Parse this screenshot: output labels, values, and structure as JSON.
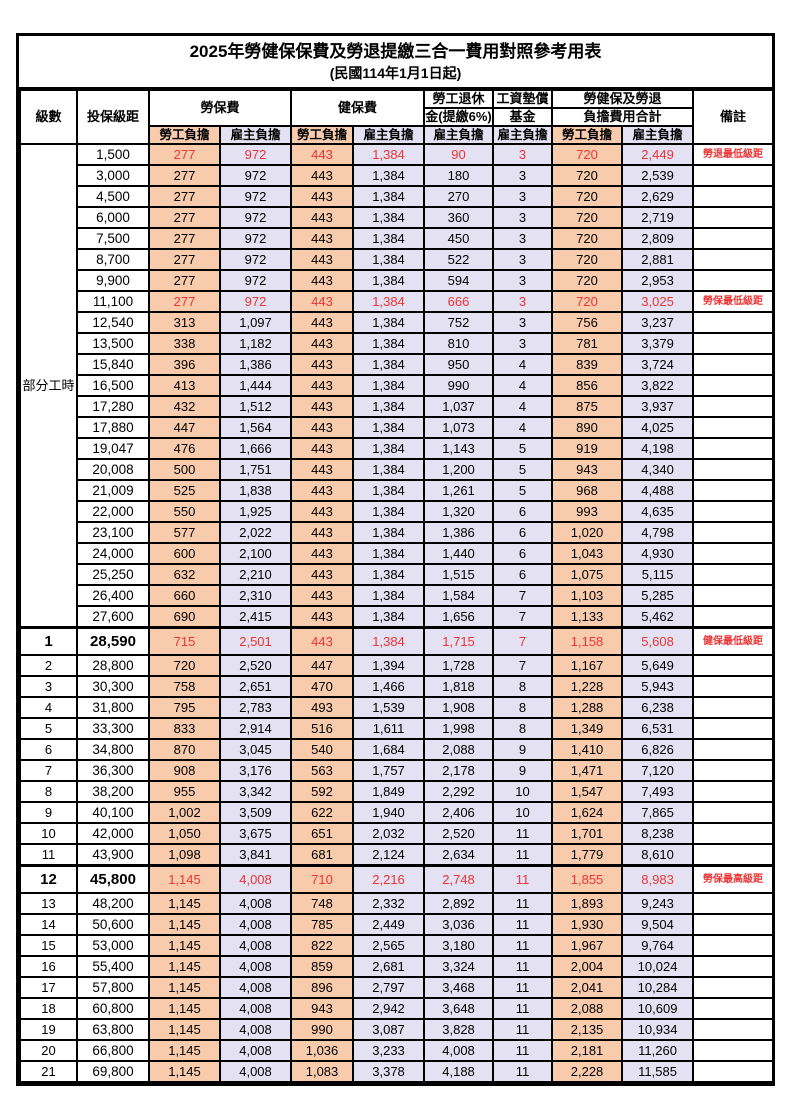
{
  "title": "2025年勞健保保費及勞退提繳三合一費用對照參考用表",
  "subtitle": "(民國114年1月1日起)",
  "colors": {
    "worker_bg": "#F8CBAD",
    "employer_bg": "#E3E1F2",
    "highlight_text": "#EE3333"
  },
  "headers": {
    "level": "級數",
    "bracket": "投保級距",
    "labor_insurance": "勞保費",
    "health_insurance": "健保費",
    "pension_line1": "勞工退休",
    "pension_line2": "金(提繳6%)",
    "wage_fund_line1": "工資墊償",
    "wage_fund_line2": "基金",
    "total_line1": "勞健保及勞退",
    "total_line2": "負擔費用合計",
    "remark": "備註",
    "worker_label": "勞工負擔",
    "employer_label": "雇主負擔"
  },
  "table": {
    "part_time_label": "部分工時",
    "part_time_rowspan": 23,
    "rows": [
      {
        "level": "",
        "bracket": "1,500",
        "cells": [
          "277",
          "972",
          "443",
          "1,384",
          "90",
          "3",
          "720",
          "2,449"
        ],
        "remark": "勞退最低級距",
        "highlight": true,
        "bold": false
      },
      {
        "level": "",
        "bracket": "3,000",
        "cells": [
          "277",
          "972",
          "443",
          "1,384",
          "180",
          "3",
          "720",
          "2,539"
        ],
        "remark": "",
        "highlight": false,
        "bold": false
      },
      {
        "level": "",
        "bracket": "4,500",
        "cells": [
          "277",
          "972",
          "443",
          "1,384",
          "270",
          "3",
          "720",
          "2,629"
        ],
        "remark": "",
        "highlight": false,
        "bold": false
      },
      {
        "level": "",
        "bracket": "6,000",
        "cells": [
          "277",
          "972",
          "443",
          "1,384",
          "360",
          "3",
          "720",
          "2,719"
        ],
        "remark": "",
        "highlight": false,
        "bold": false
      },
      {
        "level": "",
        "bracket": "7,500",
        "cells": [
          "277",
          "972",
          "443",
          "1,384",
          "450",
          "3",
          "720",
          "2,809"
        ],
        "remark": "",
        "highlight": false,
        "bold": false
      },
      {
        "level": "",
        "bracket": "8,700",
        "cells": [
          "277",
          "972",
          "443",
          "1,384",
          "522",
          "3",
          "720",
          "2,881"
        ],
        "remark": "",
        "highlight": false,
        "bold": false
      },
      {
        "level": "",
        "bracket": "9,900",
        "cells": [
          "277",
          "972",
          "443",
          "1,384",
          "594",
          "3",
          "720",
          "2,953"
        ],
        "remark": "",
        "highlight": false,
        "bold": false
      },
      {
        "level": "",
        "bracket": "11,100",
        "cells": [
          "277",
          "972",
          "443",
          "1,384",
          "666",
          "3",
          "720",
          "3,025"
        ],
        "remark": "勞保最低級距",
        "highlight": true,
        "bold": false
      },
      {
        "level": "",
        "bracket": "12,540",
        "cells": [
          "313",
          "1,097",
          "443",
          "1,384",
          "752",
          "3",
          "756",
          "3,237"
        ],
        "remark": "",
        "highlight": false,
        "bold": false
      },
      {
        "level": "",
        "bracket": "13,500",
        "cells": [
          "338",
          "1,182",
          "443",
          "1,384",
          "810",
          "3",
          "781",
          "3,379"
        ],
        "remark": "",
        "highlight": false,
        "bold": false
      },
      {
        "level": "",
        "bracket": "15,840",
        "cells": [
          "396",
          "1,386",
          "443",
          "1,384",
          "950",
          "4",
          "839",
          "3,724"
        ],
        "remark": "",
        "highlight": false,
        "bold": false
      },
      {
        "level": "",
        "bracket": "16,500",
        "cells": [
          "413",
          "1,444",
          "443",
          "1,384",
          "990",
          "4",
          "856",
          "3,822"
        ],
        "remark": "",
        "highlight": false,
        "bold": false
      },
      {
        "level": "",
        "bracket": "17,280",
        "cells": [
          "432",
          "1,512",
          "443",
          "1,384",
          "1,037",
          "4",
          "875",
          "3,937"
        ],
        "remark": "",
        "highlight": false,
        "bold": false
      },
      {
        "level": "",
        "bracket": "17,880",
        "cells": [
          "447",
          "1,564",
          "443",
          "1,384",
          "1,073",
          "4",
          "890",
          "4,025"
        ],
        "remark": "",
        "highlight": false,
        "bold": false
      },
      {
        "level": "",
        "bracket": "19,047",
        "cells": [
          "476",
          "1,666",
          "443",
          "1,384",
          "1,143",
          "5",
          "919",
          "4,198"
        ],
        "remark": "",
        "highlight": false,
        "bold": false
      },
      {
        "level": "",
        "bracket": "20,008",
        "cells": [
          "500",
          "1,751",
          "443",
          "1,384",
          "1,200",
          "5",
          "943",
          "4,340"
        ],
        "remark": "",
        "highlight": false,
        "bold": false
      },
      {
        "level": "",
        "bracket": "21,009",
        "cells": [
          "525",
          "1,838",
          "443",
          "1,384",
          "1,261",
          "5",
          "968",
          "4,488"
        ],
        "remark": "",
        "highlight": false,
        "bold": false
      },
      {
        "level": "",
        "bracket": "22,000",
        "cells": [
          "550",
          "1,925",
          "443",
          "1,384",
          "1,320",
          "6",
          "993",
          "4,635"
        ],
        "remark": "",
        "highlight": false,
        "bold": false
      },
      {
        "level": "",
        "bracket": "23,100",
        "cells": [
          "577",
          "2,022",
          "443",
          "1,384",
          "1,386",
          "6",
          "1,020",
          "4,798"
        ],
        "remark": "",
        "highlight": false,
        "bold": false
      },
      {
        "level": "",
        "bracket": "24,000",
        "cells": [
          "600",
          "2,100",
          "443",
          "1,384",
          "1,440",
          "6",
          "1,043",
          "4,930"
        ],
        "remark": "",
        "highlight": false,
        "bold": false
      },
      {
        "level": "",
        "bracket": "25,250",
        "cells": [
          "632",
          "2,210",
          "443",
          "1,384",
          "1,515",
          "6",
          "1,075",
          "5,115"
        ],
        "remark": "",
        "highlight": false,
        "bold": false
      },
      {
        "level": "",
        "bracket": "26,400",
        "cells": [
          "660",
          "2,310",
          "443",
          "1,384",
          "1,584",
          "7",
          "1,103",
          "5,285"
        ],
        "remark": "",
        "highlight": false,
        "bold": false
      },
      {
        "level": "",
        "bracket": "27,600",
        "cells": [
          "690",
          "2,415",
          "443",
          "1,384",
          "1,656",
          "7",
          "1,133",
          "5,462"
        ],
        "remark": "",
        "highlight": false,
        "bold": false
      },
      {
        "level": "1",
        "bracket": "28,590",
        "cells": [
          "715",
          "2,501",
          "443",
          "1,384",
          "1,715",
          "7",
          "1,158",
          "5,608"
        ],
        "remark": "健保最低級距",
        "highlight": true,
        "bold": true
      },
      {
        "level": "2",
        "bracket": "28,800",
        "cells": [
          "720",
          "2,520",
          "447",
          "1,394",
          "1,728",
          "7",
          "1,167",
          "5,649"
        ],
        "remark": "",
        "highlight": false,
        "bold": false
      },
      {
        "level": "3",
        "bracket": "30,300",
        "cells": [
          "758",
          "2,651",
          "470",
          "1,466",
          "1,818",
          "8",
          "1,228",
          "5,943"
        ],
        "remark": "",
        "highlight": false,
        "bold": false
      },
      {
        "level": "4",
        "bracket": "31,800",
        "cells": [
          "795",
          "2,783",
          "493",
          "1,539",
          "1,908",
          "8",
          "1,288",
          "6,238"
        ],
        "remark": "",
        "highlight": false,
        "bold": false
      },
      {
        "level": "5",
        "bracket": "33,300",
        "cells": [
          "833",
          "2,914",
          "516",
          "1,611",
          "1,998",
          "8",
          "1,349",
          "6,531"
        ],
        "remark": "",
        "highlight": false,
        "bold": false
      },
      {
        "level": "6",
        "bracket": "34,800",
        "cells": [
          "870",
          "3,045",
          "540",
          "1,684",
          "2,088",
          "9",
          "1,410",
          "6,826"
        ],
        "remark": "",
        "highlight": false,
        "bold": false
      },
      {
        "level": "7",
        "bracket": "36,300",
        "cells": [
          "908",
          "3,176",
          "563",
          "1,757",
          "2,178",
          "9",
          "1,471",
          "7,120"
        ],
        "remark": "",
        "highlight": false,
        "bold": false
      },
      {
        "level": "8",
        "bracket": "38,200",
        "cells": [
          "955",
          "3,342",
          "592",
          "1,849",
          "2,292",
          "10",
          "1,547",
          "7,493"
        ],
        "remark": "",
        "highlight": false,
        "bold": false
      },
      {
        "level": "9",
        "bracket": "40,100",
        "cells": [
          "1,002",
          "3,509",
          "622",
          "1,940",
          "2,406",
          "10",
          "1,624",
          "7,865"
        ],
        "remark": "",
        "highlight": false,
        "bold": false
      },
      {
        "level": "10",
        "bracket": "42,000",
        "cells": [
          "1,050",
          "3,675",
          "651",
          "2,032",
          "2,520",
          "11",
          "1,701",
          "8,238"
        ],
        "remark": "",
        "highlight": false,
        "bold": false
      },
      {
        "level": "11",
        "bracket": "43,900",
        "cells": [
          "1,098",
          "3,841",
          "681",
          "2,124",
          "2,634",
          "11",
          "1,779",
          "8,610"
        ],
        "remark": "",
        "highlight": false,
        "bold": false
      },
      {
        "level": "12",
        "bracket": "45,800",
        "cells": [
          "1,145",
          "4,008",
          "710",
          "2,216",
          "2,748",
          "11",
          "1,855",
          "8,983"
        ],
        "remark": "勞保最高級距",
        "highlight": true,
        "bold": true
      },
      {
        "level": "13",
        "bracket": "48,200",
        "cells": [
          "1,145",
          "4,008",
          "748",
          "2,332",
          "2,892",
          "11",
          "1,893",
          "9,243"
        ],
        "remark": "",
        "highlight": false,
        "bold": false
      },
      {
        "level": "14",
        "bracket": "50,600",
        "cells": [
          "1,145",
          "4,008",
          "785",
          "2,449",
          "3,036",
          "11",
          "1,930",
          "9,504"
        ],
        "remark": "",
        "highlight": false,
        "bold": false
      },
      {
        "level": "15",
        "bracket": "53,000",
        "cells": [
          "1,145",
          "4,008",
          "822",
          "2,565",
          "3,180",
          "11",
          "1,967",
          "9,764"
        ],
        "remark": "",
        "highlight": false,
        "bold": false
      },
      {
        "level": "16",
        "bracket": "55,400",
        "cells": [
          "1,145",
          "4,008",
          "859",
          "2,681",
          "3,324",
          "11",
          "2,004",
          "10,024"
        ],
        "remark": "",
        "highlight": false,
        "bold": false
      },
      {
        "level": "17",
        "bracket": "57,800",
        "cells": [
          "1,145",
          "4,008",
          "896",
          "2,797",
          "3,468",
          "11",
          "2,041",
          "10,284"
        ],
        "remark": "",
        "highlight": false,
        "bold": false
      },
      {
        "level": "18",
        "bracket": "60,800",
        "cells": [
          "1,145",
          "4,008",
          "943",
          "2,942",
          "3,648",
          "11",
          "2,088",
          "10,609"
        ],
        "remark": "",
        "highlight": false,
        "bold": false
      },
      {
        "level": "19",
        "bracket": "63,800",
        "cells": [
          "1,145",
          "4,008",
          "990",
          "3,087",
          "3,828",
          "11",
          "2,135",
          "10,934"
        ],
        "remark": "",
        "highlight": false,
        "bold": false
      },
      {
        "level": "20",
        "bracket": "66,800",
        "cells": [
          "1,145",
          "4,008",
          "1,036",
          "3,233",
          "4,008",
          "11",
          "2,181",
          "11,260"
        ],
        "remark": "",
        "highlight": false,
        "bold": false
      },
      {
        "level": "21",
        "bracket": "69,800",
        "cells": [
          "1,145",
          "4,008",
          "1,083",
          "3,378",
          "4,188",
          "11",
          "2,228",
          "11,585"
        ],
        "remark": "",
        "highlight": false,
        "bold": false
      }
    ]
  }
}
